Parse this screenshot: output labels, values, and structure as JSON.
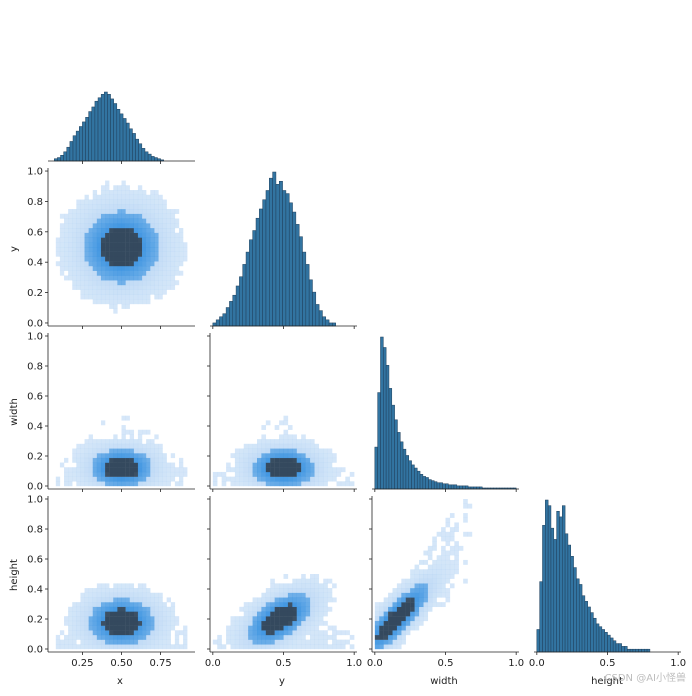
{
  "chart_data": {
    "type": "pairplot",
    "variables": [
      "x",
      "y",
      "width",
      "height"
    ],
    "diagonal": "histogram",
    "lower": "2d histogram",
    "upper": "empty",
    "colors": {
      "bars": "#3274a1",
      "bar_edge": "#1f3f5b",
      "density_low": "#a9cdf2",
      "density_mid": "#3a92e0",
      "density_high": "#34495e"
    },
    "axes": {
      "x": {
        "label": "x",
        "ticks": [
          "0.25",
          "0.50",
          "0.75"
        ],
        "tick_values": [
          0.25,
          0.5,
          0.75
        ],
        "range": [
          0.03,
          0.97
        ]
      },
      "y": {
        "label": "y",
        "ticks": [
          "0.0",
          "0.5",
          "1.0"
        ],
        "tick_values": [
          0.0,
          0.5,
          1.0
        ],
        "range": [
          -0.02,
          1.02
        ],
        "row_ticks": [
          "0.0",
          "0.2",
          "0.4",
          "0.6",
          "0.8",
          "1.0"
        ]
      },
      "width": {
        "label": "width",
        "ticks": [
          "0.0",
          "0.5",
          "1.0"
        ],
        "tick_values": [
          0.0,
          0.5,
          1.0
        ],
        "range": [
          -0.02,
          1.02
        ],
        "row_ticks": [
          "0.0",
          "0.2",
          "0.4",
          "0.6",
          "0.8",
          "1.0"
        ]
      },
      "height": {
        "label": "height",
        "ticks": [
          "0.0",
          "0.5",
          "1.0"
        ],
        "tick_values": [
          0.0,
          0.5,
          1.0
        ],
        "range": [
          -0.02,
          1.02
        ],
        "row_ticks": [
          "0.0",
          "0.2",
          "0.4",
          "0.6",
          "0.8",
          "1.0"
        ]
      }
    },
    "row_tick_values": [
      0.0,
      0.2,
      0.4,
      0.6,
      0.8,
      1.0
    ],
    "histograms": {
      "x": {
        "bin_start": 0.07,
        "bin_width": 0.02,
        "counts": [
          2,
          3,
          5,
          8,
          12,
          17,
          22,
          26,
          30,
          34,
          38,
          43,
          47,
          52,
          55,
          58,
          60,
          58,
          54,
          50,
          45,
          41,
          37,
          33,
          28,
          24,
          19,
          15,
          11,
          8,
          6,
          4,
          3,
          2,
          1
        ]
      },
      "y": {
        "bin_start": 0.0,
        "bin_width": 0.0235,
        "counts": [
          1,
          2,
          3,
          4,
          6,
          8,
          10,
          13,
          16,
          20,
          24,
          28,
          31,
          35,
          38,
          41,
          44,
          48,
          50,
          46,
          47,
          44,
          43,
          40,
          37,
          33,
          29,
          24,
          20,
          15,
          11,
          7,
          5,
          3,
          2,
          1,
          1
        ]
      },
      "width": {
        "bin_start": 0.0,
        "bin_width": 0.02,
        "counts": [
          40,
          92,
          145,
          135,
          118,
          96,
          80,
          66,
          54,
          45,
          38,
          32,
          27,
          23,
          20,
          17,
          14,
          12,
          11,
          9,
          8,
          7,
          6,
          6,
          5,
          5,
          4,
          4,
          4,
          3,
          3,
          3,
          3,
          2,
          2,
          2,
          2,
          2,
          1,
          1,
          1,
          1,
          1,
          1,
          1,
          1,
          1,
          1,
          1,
          1
        ]
      },
      "height": {
        "bin_start": 0.0,
        "bin_width": 0.02,
        "counts": [
          8,
          25,
          45,
          54,
          52,
          44,
          40,
          50,
          48,
          52,
          42,
          38,
          34,
          30,
          26,
          24,
          20,
          18,
          16,
          14,
          12,
          10,
          9,
          8,
          7,
          6,
          5,
          4,
          3,
          3,
          2,
          2,
          1,
          1,
          1,
          1,
          1,
          1,
          1,
          1
        ]
      }
    },
    "densities": {
      "y_vs_x": {
        "cx": 0.5,
        "cy": 0.5,
        "sx": 0.17,
        "sy": 0.17,
        "rho": 0.0
      },
      "width_vs_x": {
        "cx": 0.5,
        "cy": 0.12,
        "sx": 0.14,
        "sy": 0.09,
        "rho": 0.0
      },
      "width_vs_y": {
        "cx": 0.5,
        "cy": 0.12,
        "sx": 0.16,
        "sy": 0.09,
        "rho": 0.0
      },
      "height_vs_x": {
        "cx": 0.5,
        "cy": 0.18,
        "sx": 0.15,
        "sy": 0.11,
        "rho": 0.0
      },
      "height_vs_y": {
        "cx": 0.47,
        "cy": 0.2,
        "sx": 0.16,
        "sy": 0.12,
        "rho": 0.55
      },
      "height_vs_width": {
        "cx": 0.15,
        "cy": 0.2,
        "sx": 0.17,
        "sy": 0.17,
        "rho": 0.85
      }
    },
    "watermark": "CSDN @AI小怪兽"
  }
}
